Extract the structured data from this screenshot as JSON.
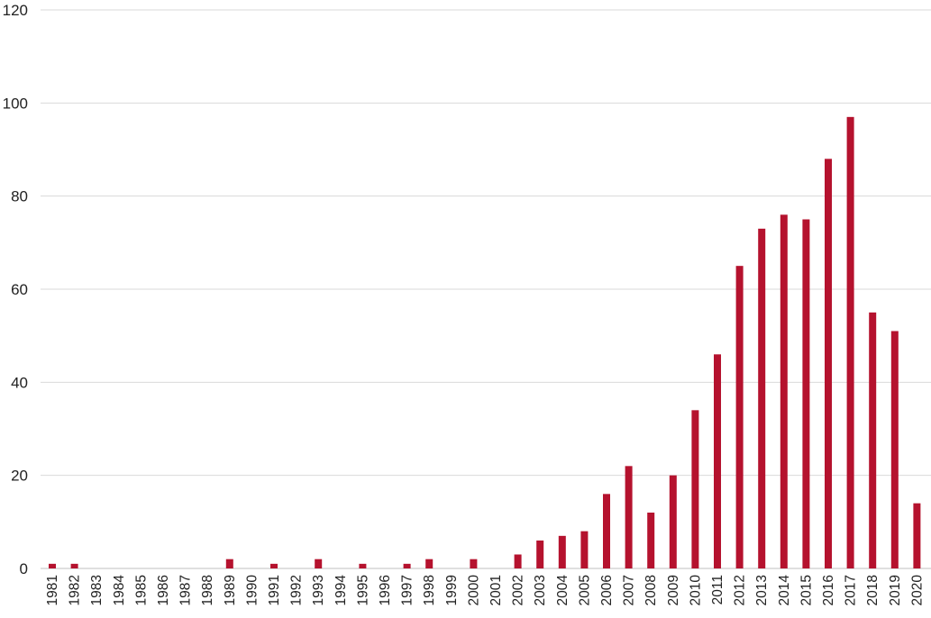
{
  "chart_data": {
    "type": "bar",
    "title": "",
    "xlabel": "",
    "ylabel": "",
    "ylim": [
      0,
      120
    ],
    "yticks": [
      0,
      20,
      40,
      60,
      80,
      100,
      120
    ],
    "grid": true,
    "legend": "none",
    "bar_color": "#b5122e",
    "categories": [
      "1981",
      "1982",
      "1983",
      "1984",
      "1985",
      "1986",
      "1987",
      "1988",
      "1989",
      "1990",
      "1991",
      "1992",
      "1993",
      "1994",
      "1995",
      "1996",
      "1997",
      "1998",
      "1999",
      "2000",
      "2001",
      "2002",
      "2003",
      "2004",
      "2005",
      "2006",
      "2007",
      "2008",
      "2009",
      "2010",
      "2011",
      "2012",
      "2013",
      "2014",
      "2015",
      "2016",
      "2017",
      "2018",
      "2019",
      "2020"
    ],
    "values": [
      1,
      1,
      0,
      0,
      0,
      0,
      0,
      0,
      2,
      0,
      1,
      0,
      2,
      0,
      1,
      0,
      1,
      2,
      0,
      2,
      0,
      3,
      6,
      7,
      8,
      16,
      22,
      12,
      20,
      34,
      46,
      65,
      73,
      76,
      75,
      88,
      97,
      55,
      51,
      14
    ]
  }
}
